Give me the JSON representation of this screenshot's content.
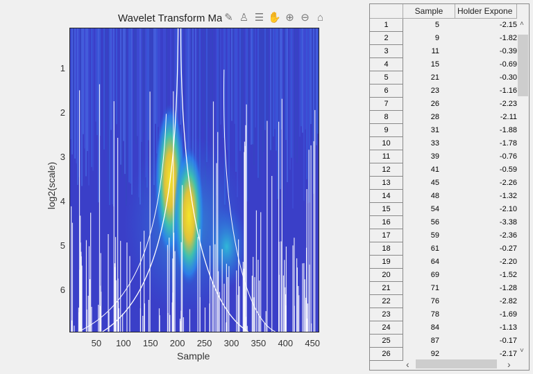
{
  "figure": {
    "title": "Wavelet Transform Ma",
    "xlabel": "Sample",
    "ylabel": "log2(scale)",
    "xticks": [
      "50",
      "100",
      "150",
      "200",
      "250",
      "300",
      "350",
      "400",
      "450"
    ],
    "yticks": [
      "1",
      "2",
      "3",
      "4",
      "5",
      "6"
    ],
    "xlim": [
      0,
      460
    ],
    "ylim": [
      0.07,
      6.92
    ],
    "colormap": "parula",
    "toolbar": [
      {
        "name": "edit-icon",
        "glyph": "✎"
      },
      {
        "name": "brush-icon",
        "glyph": "♙"
      },
      {
        "name": "legend-icon",
        "glyph": "☰"
      },
      {
        "name": "pan-hand-icon",
        "glyph": "✋"
      },
      {
        "name": "zoom-in-icon",
        "glyph": "⊕"
      },
      {
        "name": "zoom-out-icon",
        "glyph": "⊖"
      },
      {
        "name": "home-icon",
        "glyph": "⌂"
      }
    ]
  },
  "table": {
    "columns": [
      "Sample",
      "Holder Expone"
    ],
    "rows": [
      [
        "1",
        "5",
        "-2.15"
      ],
      [
        "2",
        "9",
        "-1.82"
      ],
      [
        "3",
        "11",
        "-0.39"
      ],
      [
        "4",
        "15",
        "-0.69"
      ],
      [
        "5",
        "21",
        "-0.30"
      ],
      [
        "6",
        "23",
        "-1.16"
      ],
      [
        "7",
        "26",
        "-2.23"
      ],
      [
        "8",
        "28",
        "-2.11"
      ],
      [
        "9",
        "31",
        "-1.88"
      ],
      [
        "10",
        "33",
        "-1.78"
      ],
      [
        "11",
        "39",
        "-0.76"
      ],
      [
        "12",
        "41",
        "-0.59"
      ],
      [
        "13",
        "45",
        "-2.26"
      ],
      [
        "14",
        "48",
        "-1.32"
      ],
      [
        "15",
        "54",
        "-2.10"
      ],
      [
        "16",
        "56",
        "-3.38"
      ],
      [
        "17",
        "59",
        "-2.36"
      ],
      [
        "18",
        "61",
        "-0.27"
      ],
      [
        "19",
        "64",
        "-2.20"
      ],
      [
        "20",
        "69",
        "-1.52"
      ],
      [
        "21",
        "71",
        "-1.28"
      ],
      [
        "22",
        "76",
        "-2.82"
      ],
      [
        "23",
        "78",
        "-1.69"
      ],
      [
        "24",
        "84",
        "-1.13"
      ],
      [
        "25",
        "87",
        "-0.17"
      ],
      [
        "26",
        "92",
        "-2.17"
      ]
    ],
    "scroll_up": "˄",
    "scroll_down": "˅",
    "scroll_left": "‹",
    "scroll_right": "›"
  }
}
